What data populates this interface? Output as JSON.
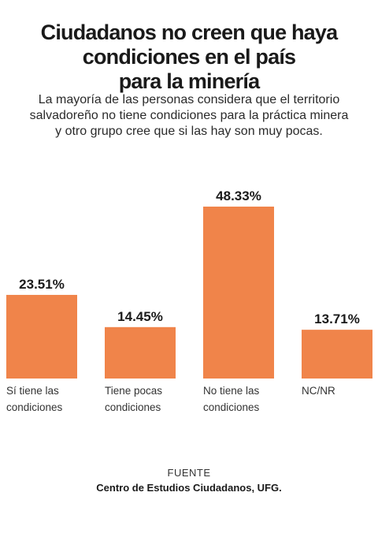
{
  "header": {
    "title_lines": [
      "Ciudadanos no creen que haya",
      "condiciones en el país",
      "para la minería"
    ],
    "subtitle_lines": [
      "La mayoría de las personas considera que el territorio",
      "salvadoreño no tiene condiciones para la práctica minera",
      "y otro grupo cree que si las hay  son muy pocas."
    ]
  },
  "chart_data": {
    "type": "bar",
    "categories": [
      [
        "Sí tiene las",
        "condiciones"
      ],
      [
        "Tiene pocas",
        "condiciones"
      ],
      [
        "No tiene las",
        "condiciones"
      ],
      [
        "NC/NR"
      ]
    ],
    "values": [
      23.51,
      14.45,
      48.33,
      13.71
    ],
    "value_labels": [
      "23.51%",
      "14.45%",
      "48.33%",
      "13.71%"
    ],
    "ylim": [
      0,
      48.33
    ],
    "grid": false,
    "legend": "none",
    "bar_color": "#f0844a"
  },
  "footer": {
    "source_label": "FUENTE",
    "source_name": "Centro de Estudios Ciudadanos, UFG."
  }
}
